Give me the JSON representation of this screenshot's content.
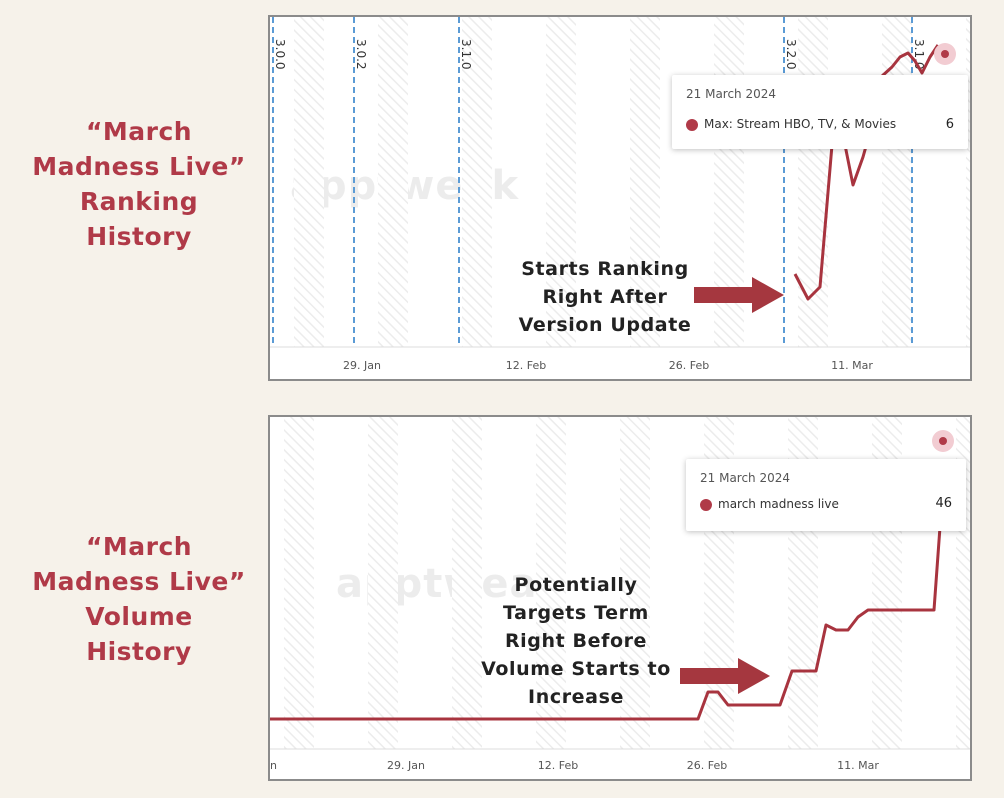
{
  "colors": {
    "accent": "#b03a48",
    "guide": "#5b9bd5",
    "line": "#a8343f",
    "arrow": "#a5373f"
  },
  "labels": {
    "ranking": [
      "“March",
      "Madness Live”",
      "Ranking",
      "History"
    ],
    "volume": [
      "“March",
      "Madness Live”",
      "Volume",
      "History"
    ]
  },
  "annotations": {
    "ranking": [
      "Starts Ranking",
      "Right After",
      "Version Update"
    ],
    "volume": [
      "Potentially",
      "Targets Term",
      "Right Before",
      "Volume Starts to",
      "Increase"
    ]
  },
  "watermark": "apptweak",
  "chart_data": [
    {
      "type": "line",
      "x_tick_labels": [
        "29. Jan",
        "12. Feb",
        "26. Feb",
        "11. Mar"
      ],
      "version_markers": [
        "3.0.0",
        "3.0.2",
        "3.1.0",
        "3.2.0",
        "3.1.0"
      ],
      "tooltip": {
        "date": "21 March 2024",
        "series": "Max: Stream HBO, TV, & Movies",
        "value": "6",
        "color": "#b03a48"
      },
      "icon": "pin-icon"
    },
    {
      "type": "line",
      "x_tick_labels": [
        "n",
        "29. Jan",
        "12. Feb",
        "26. Feb",
        "11. Mar"
      ],
      "tooltip": {
        "date": "21 March 2024",
        "series": "march madness live",
        "value": "46",
        "color": "#b03a48"
      },
      "icon": "pin-icon"
    }
  ]
}
